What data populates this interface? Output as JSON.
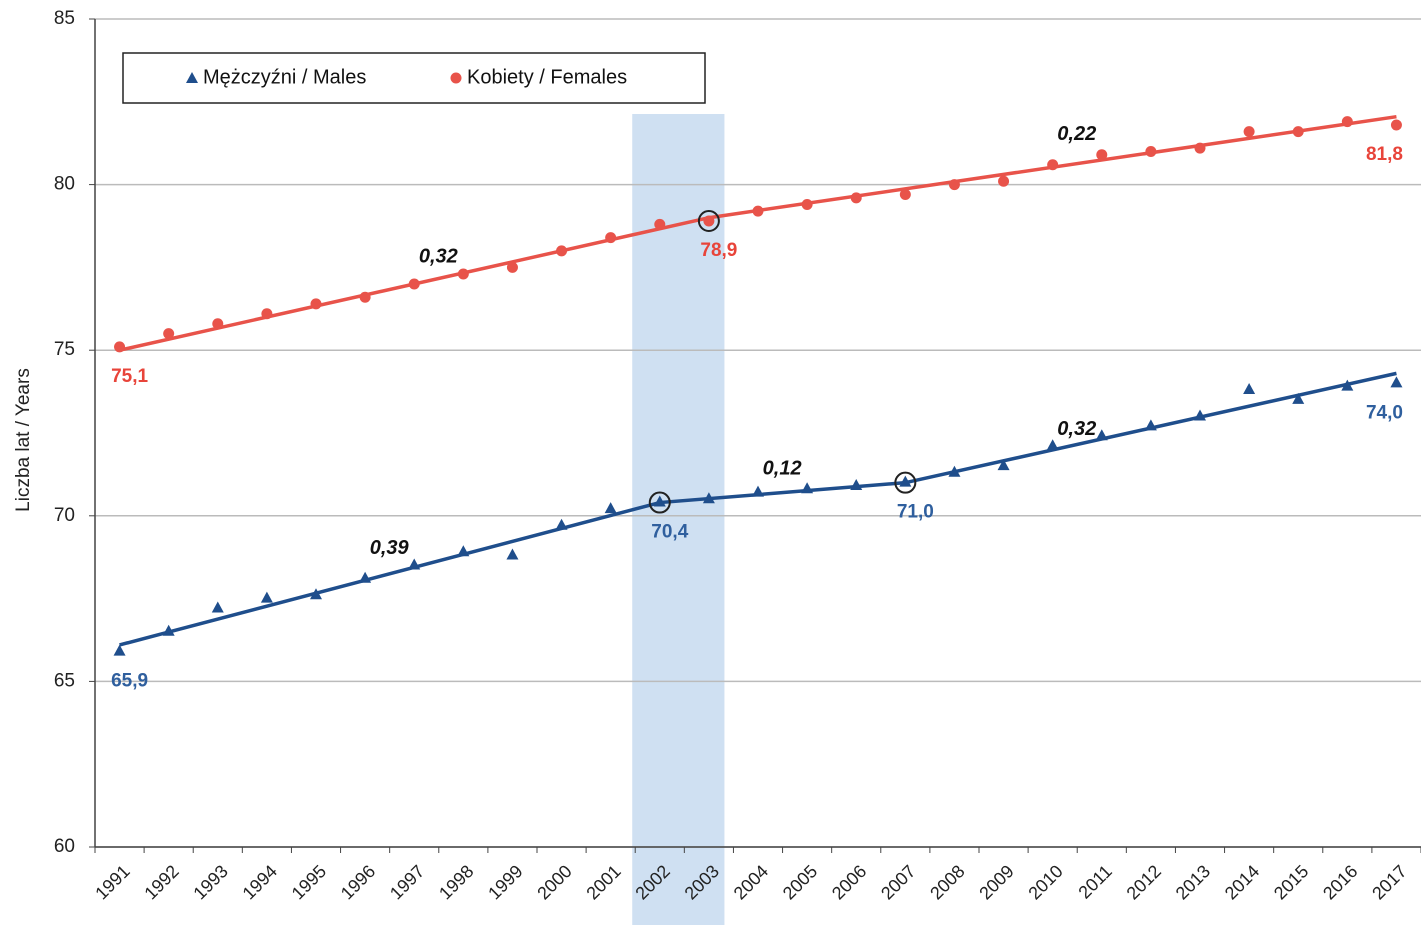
{
  "chart_data": {
    "type": "line",
    "y_label": "Liczba lat / Years",
    "categories": [
      "1991",
      "1992",
      "1993",
      "1994",
      "1995",
      "1996",
      "1997",
      "1998",
      "1999",
      "2000",
      "2001",
      "2002",
      "2003",
      "2004",
      "2005",
      "2006",
      "2007",
      "2008",
      "2009",
      "2010",
      "2011",
      "2012",
      "2013",
      "2014",
      "2015",
      "2016",
      "2017"
    ],
    "series": [
      {
        "name": "Mężczyźni / Males",
        "color": "#1f4e8c",
        "marker": "triangle",
        "label_color": "#2f5f9e",
        "values": [
          65.9,
          66.5,
          67.2,
          67.5,
          67.6,
          68.1,
          68.5,
          68.9,
          68.8,
          69.7,
          70.2,
          70.4,
          70.5,
          70.7,
          70.8,
          70.9,
          71.0,
          71.3,
          71.5,
          72.1,
          72.4,
          72.7,
          73.0,
          73.8,
          73.5,
          73.9,
          74.0
        ],
        "value_labels": [
          "65,9",
          null,
          null,
          null,
          null,
          null,
          null,
          null,
          null,
          null,
          null,
          "70,4",
          null,
          null,
          null,
          null,
          "71,0",
          null,
          null,
          null,
          null,
          null,
          null,
          null,
          null,
          null,
          "74,0"
        ],
        "circled": [
          11,
          16
        ],
        "trend": {
          "categories": [
            "1991",
            "2002",
            "2007",
            "2017"
          ],
          "values": [
            66.1,
            70.4,
            71.0,
            74.3
          ]
        }
      },
      {
        "name": "Kobiety / Females",
        "color": "#e8534a",
        "marker": "circle",
        "label_color": "#e8443a",
        "values": [
          75.1,
          75.5,
          75.8,
          76.1,
          76.4,
          76.6,
          77.0,
          77.3,
          77.5,
          78.0,
          78.4,
          78.8,
          78.9,
          79.2,
          79.4,
          79.6,
          79.7,
          80.0,
          80.1,
          80.6,
          80.9,
          81.0,
          81.1,
          81.6,
          81.6,
          81.9,
          81.8
        ],
        "value_labels": [
          "75,1",
          null,
          null,
          null,
          null,
          null,
          null,
          null,
          null,
          null,
          null,
          null,
          "78,9",
          null,
          null,
          null,
          null,
          null,
          null,
          null,
          null,
          null,
          null,
          null,
          null,
          null,
          "81,8"
        ],
        "circled": [
          12
        ],
        "trend": {
          "categories": [
            "1991",
            "2003",
            "2017"
          ],
          "values": [
            75.0,
            79.0,
            82.05
          ]
        }
      }
    ],
    "annotations": [
      {
        "text": "0,32",
        "x": "1998",
        "y": 77.8
      },
      {
        "text": "0,39",
        "x": "1997",
        "y": 69.0
      },
      {
        "text": "0,12",
        "x": "2005",
        "y": 71.4
      },
      {
        "text": "0,22",
        "x": "2011",
        "y": 81.5
      },
      {
        "text": "0,32",
        "x": "2011",
        "y": 72.6
      }
    ],
    "highlight": [
      "2002",
      "2003"
    ],
    "highlight_color": "#cfe0f2",
    "ylim": [
      60,
      85
    ],
    "yticks": [
      60,
      65,
      70,
      75,
      80,
      85
    ],
    "grid": true,
    "legend": "top-left"
  }
}
